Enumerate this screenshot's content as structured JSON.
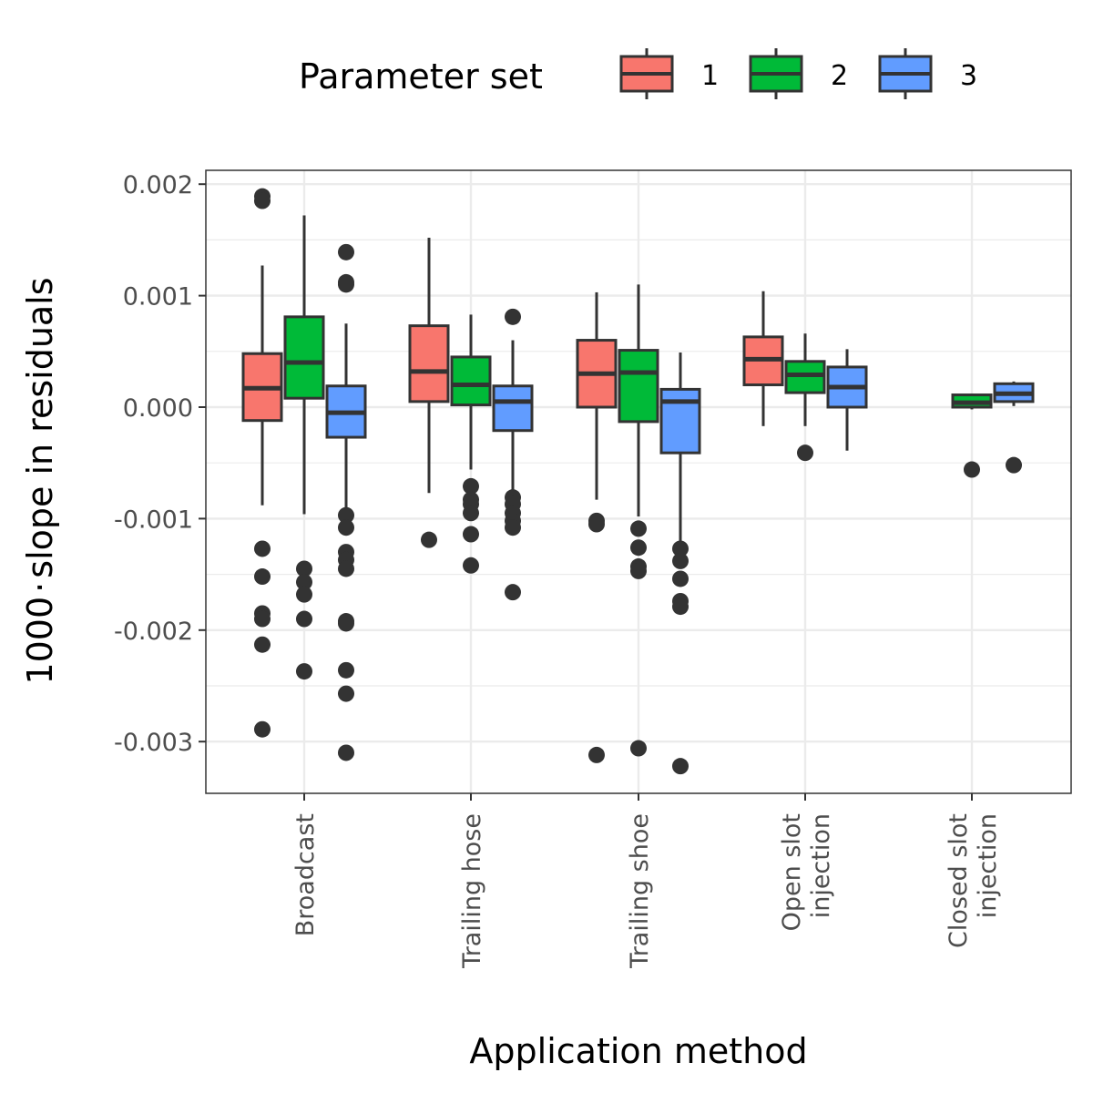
{
  "chart_data": {
    "type": "boxplot",
    "xlabel": "Application method",
    "ylabel_main": "1000",
    "ylabel_dot": "·",
    "ylabel_rest": "slope in residuals",
    "ylim": [
      -0.0035,
      0.0021
    ],
    "yticks": [
      0.002,
      0.001,
      0.0,
      -0.001,
      -0.002,
      -0.003
    ],
    "ytick_labels": [
      "0.002",
      "0.001",
      "0.000",
      "-0.001",
      "-0.002",
      "-0.003"
    ],
    "grid": true,
    "legend": {
      "title": "Parameter set",
      "position": "top",
      "entries": [
        {
          "label": "1",
          "color": "#F8766D"
        },
        {
          "label": "2",
          "color": "#00BA38"
        },
        {
          "label": "3",
          "color": "#619CFF"
        }
      ]
    },
    "categories": [
      {
        "label_lines": [
          "Broadcast"
        ]
      },
      {
        "label_lines": [
          "Trailing hose"
        ]
      },
      {
        "label_lines": [
          "Trailing shoe"
        ]
      },
      {
        "label_lines": [
          "Open slot",
          "injection"
        ]
      },
      {
        "label_lines": [
          "Closed slot",
          "injection"
        ]
      }
    ],
    "series": [
      {
        "name": "1",
        "color": "#F8766D",
        "boxes": [
          {
            "category": 0,
            "min": -0.00088,
            "q1": -0.00012,
            "median": 0.00017,
            "q3": 0.00048,
            "max": 0.00127,
            "outliers": [
              0.00189,
              0.00185,
              -0.00127,
              -0.00152,
              -0.00185,
              -0.0019,
              -0.00213,
              -0.00289
            ]
          },
          {
            "category": 1,
            "min": -0.00077,
            "q1": 5e-05,
            "median": 0.00032,
            "q3": 0.00073,
            "max": 0.00152,
            "outliers": [
              -0.00119
            ]
          },
          {
            "category": 2,
            "min": -0.00083,
            "q1": 0.0,
            "median": 0.0003,
            "q3": 0.0006,
            "max": 0.00103,
            "outliers": [
              -0.00102,
              -0.00105,
              -0.00312
            ]
          },
          {
            "category": 3,
            "min": -0.00017,
            "q1": 0.0002,
            "median": 0.00043,
            "q3": 0.00063,
            "max": 0.00104,
            "outliers": []
          }
        ]
      },
      {
        "name": "2",
        "color": "#00BA38",
        "boxes": [
          {
            "category": 0,
            "min": -0.00096,
            "q1": 8e-05,
            "median": 0.0004,
            "q3": 0.00081,
            "max": 0.00172,
            "outliers": [
              -0.00145,
              -0.00157,
              -0.00168,
              -0.0019,
              -0.00237
            ]
          },
          {
            "category": 1,
            "min": -0.00056,
            "q1": 2e-05,
            "median": 0.0002,
            "q3": 0.00045,
            "max": 0.00083,
            "outliers": [
              -0.00071,
              -0.00083,
              -0.00087,
              -0.00095,
              -0.00114,
              -0.00142
            ]
          },
          {
            "category": 2,
            "min": -0.00098,
            "q1": -0.00013,
            "median": 0.00031,
            "q3": 0.00051,
            "max": 0.0011,
            "outliers": [
              -0.00109,
              -0.00126,
              -0.00143,
              -0.00147,
              -0.00306
            ]
          },
          {
            "category": 3,
            "min": -0.00017,
            "q1": 0.00013,
            "median": 0.00029,
            "q3": 0.00041,
            "max": 0.00066,
            "outliers": [
              -0.00041
            ]
          },
          {
            "category": 4,
            "min": -2e-05,
            "q1": 0.0,
            "median": 4e-05,
            "q3": 0.00011,
            "max": 0.00012,
            "outliers": [
              -0.00056
            ]
          }
        ]
      },
      {
        "name": "3",
        "color": "#619CFF",
        "boxes": [
          {
            "category": 0,
            "min": -0.00091,
            "q1": -0.00027,
            "median": -5e-05,
            "q3": 0.00019,
            "max": 0.00075,
            "outliers": [
              0.00139,
              0.00112,
              0.0011,
              -0.00097,
              -0.00108,
              -0.0013,
              -0.00137,
              -0.00145,
              -0.00192,
              -0.00194,
              -0.00236,
              -0.00257,
              -0.0031
            ]
          },
          {
            "category": 1,
            "min": -0.00077,
            "q1": -0.00021,
            "median": 5e-05,
            "q3": 0.00019,
            "max": 0.0006,
            "outliers": [
              0.00081,
              -0.00081,
              -0.00087,
              -0.00095,
              -0.00102,
              -0.00108,
              -0.00166
            ]
          },
          {
            "category": 2,
            "min": -0.00123,
            "q1": -0.00041,
            "median": 5e-05,
            "q3": 0.00016,
            "max": 0.00049,
            "outliers": [
              -0.00127,
              -0.00138,
              -0.00154,
              -0.00174,
              -0.00179,
              -0.00322
            ]
          },
          {
            "category": 3,
            "min": -0.00039,
            "q1": 0.0,
            "median": 0.00018,
            "q3": 0.00036,
            "max": 0.00052,
            "outliers": []
          },
          {
            "category": 4,
            "min": 1e-05,
            "q1": 5e-05,
            "median": 0.00012,
            "q3": 0.00021,
            "max": 0.00023,
            "outliers": [
              -0.00052
            ]
          }
        ]
      }
    ]
  }
}
